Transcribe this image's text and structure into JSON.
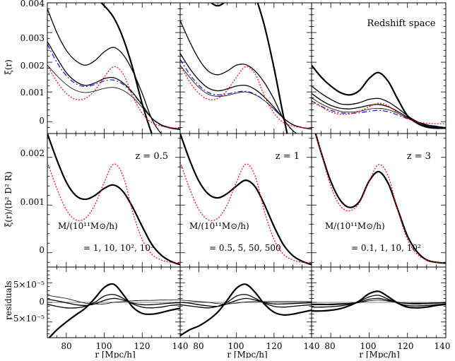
{
  "figure": {
    "x_label": "r [Mpc/h]",
    "x_ticks": [
      80,
      100,
      120,
      140
    ],
    "x_range": [
      70,
      140
    ],
    "row_labels": {
      "top": "ξ(r)",
      "middle": "ξ(r)/(b² D² R)",
      "bottom": "residuals"
    },
    "y_ticks": {
      "top": [
        "0.004",
        "0.003",
        "0.002",
        "0.001",
        "0"
      ],
      "middle": [
        "0.002",
        "0.001",
        "0"
      ],
      "bottom": [
        "5×10⁻⁵",
        "0",
        "−5×10⁻⁵"
      ]
    },
    "redshift_space_label": "Redshift space",
    "panels": [
      {
        "z_label": "z = 0.5",
        "mass_header": "M/(10¹¹M⊙/h)",
        "mass_values": "= 1, 10, 10², 10³"
      },
      {
        "z_label": "z = 1",
        "mass_header": "M/(10¹¹M⊙/h)",
        "mass_values": "= 0.5, 5, 50, 500"
      },
      {
        "z_label": "z = 3",
        "mass_header": "M/(10¹¹M⊙/h)",
        "mass_values": "= 0.1, 1, 10, 10²"
      }
    ],
    "colors": {
      "model": "#000000",
      "linear": "#ff0000",
      "dashed_blue": "#2222cc"
    }
  },
  "chart_data": {
    "type": "line",
    "x": [
      70,
      75,
      80,
      85,
      90,
      95,
      100,
      105,
      110,
      115,
      120,
      125,
      130,
      135,
      140
    ],
    "row_ranges": {
      "top": [
        -0.0004,
        0.004
      ],
      "middle": [
        -0.0003,
        0.0025
      ],
      "bottom": [
        -9e-05,
        9e-05
      ]
    },
    "panels": [
      {
        "z": 0.5,
        "top_series": [
          {
            "style": "thin",
            "values": [
              0.0019,
              0.00155,
              0.00125,
              0.00105,
              0.00098,
              0.00103,
              0.00112,
              0.00115,
              0.00105,
              0.00082,
              0.00048,
              0.00012,
              -0.0001,
              -0.0002,
              -0.00025
            ]
          },
          {
            "style": "dashed_blue",
            "values": [
              0.0026,
              0.002,
              0.00155,
              0.00128,
              0.00118,
              0.00125,
              0.00137,
              0.0014,
              0.00125,
              0.00095,
              0.00055,
              0.00013,
              -0.0001,
              -0.0002,
              -0.00025
            ]
          },
          {
            "style": "medium",
            "values": [
              0.0027,
              0.00215,
              0.00165,
              0.00135,
              0.00122,
              0.0013,
              0.00145,
              0.00148,
              0.0013,
              0.00098,
              0.00056,
              0.00012,
              -0.00012,
              -0.00022,
              -0.00027
            ]
          },
          {
            "style": "medium",
            "values": [
              0.0038,
              0.003,
              0.0024,
              0.00205,
              0.0019,
              0.00205,
              0.00235,
              0.0025,
              0.00225,
              0.0017,
              0.00095,
              0.0001,
              -0.0004,
              -0.0006,
              -0.0006
            ]
          },
          {
            "style": "thick",
            "values": [
              0.0075,
              0.0068,
              0.006,
              0.0052,
              0.0046,
              0.0042,
              0.0039,
              0.0035,
              0.0028,
              0.0018,
              0.0006,
              -0.0004,
              -0.0012,
              -0.0018,
              -0.0022
            ]
          },
          {
            "style": "linear",
            "values": [
              0.0019,
              0.00135,
              0.00095,
              0.00075,
              0.00078,
              0.00105,
              0.0015,
              0.00185,
              0.0016,
              0.00085,
              0.00028,
              -3e-05,
              -0.00015,
              -0.0002,
              -0.00022
            ]
          }
        ],
        "middle_series": [
          {
            "style": "thick",
            "values": [
              0.0025,
              0.00195,
              0.00148,
              0.0012,
              0.00112,
              0.0012,
              0.00135,
              0.00142,
              0.00128,
              0.00095,
              0.00055,
              0.00018,
              -5e-05,
              -0.00018,
              -0.00025
            ]
          },
          {
            "style": "linear",
            "values": [
              0.0019,
              0.00135,
              0.0009,
              0.00069,
              0.00072,
              0.001,
              0.00148,
              0.00186,
              0.0016,
              0.00085,
              0.00028,
              -3e-05,
              -0.00015,
              -0.0002,
              -0.00022
            ]
          }
        ],
        "bottom_series": [
          {
            "style": "thin",
            "values": [
              1.8e-05,
              1.4e-05,
              1e-05,
              4e-06,
              -2e-06,
              -4e-06,
              -4e-06,
              0.0,
              2e-06,
              4e-06,
              5e-06,
              5e-06,
              6e-06,
              6e-06,
              7e-06
            ]
          },
          {
            "style": "medium",
            "values": [
              8e-06,
              4e-06,
              -1e-06,
              -6e-06,
              -8e-06,
              -4e-06,
              5e-06,
              1e-05,
              6e-06,
              -2e-06,
              -6e-06,
              -6e-06,
              -4e-06,
              -2e-06,
              -1e-06
            ]
          },
          {
            "style": "medium",
            "values": [
              -5e-06,
              -1e-05,
              -1.4e-05,
              -1.4e-05,
              -1e-05,
              0.0,
              1.6e-05,
              2e-05,
              1e-05,
              -4e-06,
              -1.2e-05,
              -1.4e-05,
              -1.2e-05,
              -8e-06,
              -6e-06
            ]
          },
          {
            "style": "thick",
            "values": [
              -9.5e-05,
              -7e-05,
              -5e-05,
              -3.2e-05,
              -1.5e-05,
              1e-05,
              3.8e-05,
              4.6e-05,
              2e-05,
              -1.2e-05,
              -2.8e-05,
              -3e-05,
              -2.6e-05,
              -2e-05,
              -1.5e-05
            ]
          }
        ]
      },
      {
        "z": 1,
        "top_series": [
          {
            "style": "thin",
            "values": [
              0.0019,
              0.0015,
              0.00115,
              0.00092,
              0.00085,
              0.00088,
              0.00096,
              0.001,
              0.0009,
              0.0007,
              0.00042,
              0.00012,
              -0.0001,
              -0.0002,
              -0.00025
            ]
          },
          {
            "style": "dashed_blue",
            "values": [
              0.0021,
              0.0016,
              0.00122,
              0.00098,
              0.0009,
              0.00093,
              0.001,
              0.00102,
              0.00092,
              0.0007,
              0.00042,
              0.00012,
              -0.0001,
              -0.0002,
              -0.00025
            ]
          },
          {
            "style": "medium",
            "values": [
              0.0023,
              0.0018,
              0.0014,
              0.00113,
              0.00104,
              0.0011,
              0.0012,
              0.00122,
              0.00108,
              0.00082,
              0.00048,
              0.00012,
              -0.0001,
              -0.0002,
              -0.00025
            ]
          },
          {
            "style": "medium",
            "values": [
              0.0034,
              0.0027,
              0.0021,
              0.0017,
              0.00158,
              0.0017,
              0.0019,
              0.00192,
              0.0017,
              0.0013,
              0.00075,
              0.0001,
              -0.0003,
              -0.0005,
              -0.0006
            ]
          },
          {
            "style": "thick",
            "values": [
              0.0062,
              0.0054,
              0.0046,
              0.0041,
              0.0039,
              0.0041,
              0.0045,
              0.0046,
              0.0042,
              0.0032,
              0.0018,
              0.0002,
              -0.0012,
              -0.002,
              -0.0025
            ]
          },
          {
            "style": "linear",
            "values": [
              0.0019,
              0.00135,
              0.00095,
              0.00075,
              0.00078,
              0.00105,
              0.0015,
              0.00185,
              0.0016,
              0.00085,
              0.00028,
              -3e-05,
              -0.00015,
              -0.0002,
              -0.00022
            ]
          }
        ],
        "middle_series": [
          {
            "style": "thick",
            "values": [
              0.0025,
              0.00195,
              0.0015,
              0.00123,
              0.00115,
              0.00124,
              0.0014,
              0.00152,
              0.00138,
              0.001,
              0.00055,
              0.00017,
              -6e-05,
              -0.00018,
              -0.00025
            ]
          },
          {
            "style": "linear",
            "values": [
              0.0019,
              0.00135,
              0.0009,
              0.00069,
              0.00072,
              0.001,
              0.00148,
              0.00186,
              0.0016,
              0.00085,
              0.00028,
              -3e-05,
              -0.00015,
              -0.0002,
              -0.00022
            ]
          }
        ],
        "bottom_series": [
          {
            "style": "thin",
            "values": [
              6e-06,
              4e-06,
              2e-06,
              0.0,
              -3e-06,
              -4e-06,
              -2e-06,
              1e-06,
              2e-06,
              2e-06,
              2e-06,
              2e-06,
              2e-06,
              2e-06,
              2e-06
            ]
          },
          {
            "style": "medium",
            "values": [
              0.0,
              -2e-06,
              -6e-06,
              -9e-06,
              -1e-05,
              -4e-06,
              5e-06,
              1e-05,
              6e-06,
              0.0,
              -4e-06,
              -4e-06,
              -3e-06,
              -2e-06,
              -1e-06
            ]
          },
          {
            "style": "medium",
            "values": [
              -6e-06,
              -9e-06,
              -1.2e-05,
              -1.4e-05,
              -1e-05,
              0.0,
              1.6e-05,
              2e-05,
              1e-05,
              -2e-06,
              -1e-05,
              -1.2e-05,
              -1e-05,
              -8e-06,
              -6e-06
            ]
          },
          {
            "style": "thick",
            "values": [
              -8.5e-05,
              -7e-05,
              -6e-05,
              -4.5e-05,
              -2.5e-05,
              5e-06,
              3.6e-05,
              4.6e-05,
              2.5e-05,
              -5e-06,
              -2.5e-05,
              -3.2e-05,
              -3e-05,
              -2.5e-05,
              -2e-05
            ]
          }
        ]
      },
      {
        "z": 3,
        "top_series": [
          {
            "style": "thin",
            "values": [
              0.0008,
              0.0006,
              0.00045,
              0.00035,
              0.00032,
              0.00035,
              0.00042,
              0.00045,
              0.0004,
              0.00028,
              0.00012,
              0.0,
              -0.0001,
              -0.00015,
              -0.0002
            ]
          },
          {
            "style": "dashed_blue",
            "values": [
              0.0007,
              0.00052,
              0.00038,
              0.0003,
              0.00028,
              0.0003,
              0.00035,
              0.00038,
              0.00033,
              0.00022,
              0.0001,
              0.0,
              -0.0001,
              -0.00015,
              -0.0002
            ]
          },
          {
            "style": "medium",
            "values": [
              0.00095,
              0.00072,
              0.00055,
              0.00045,
              0.00043,
              0.00048,
              0.00055,
              0.00058,
              0.0005,
              0.00034,
              0.00015,
              0.0,
              -0.00011,
              -0.00017,
              -0.0002
            ]
          },
          {
            "style": "medium",
            "values": [
              0.0012,
              0.00095,
              0.00075,
              0.0006,
              0.00058,
              0.00064,
              0.00075,
              0.00078,
              0.00066,
              0.00045,
              0.0002,
              0.0,
              -0.00014,
              -0.0002,
              -0.00023
            ]
          },
          {
            "style": "thick",
            "values": [
              0.0019,
              0.0015,
              0.0012,
              0.00098,
              0.0009,
              0.00105,
              0.00145,
              0.00165,
              0.00135,
              0.00075,
              0.0002,
              -5e-05,
              -0.00018,
              -0.00022,
              -0.00022
            ]
          },
          {
            "style": "linear",
            "values": [
              0.00068,
              0.0005,
              0.00033,
              0.00025,
              0.00026,
              0.00035,
              0.0005,
              0.00062,
              0.00053,
              0.00029,
              0.0001,
              -1e-05,
              -5e-05,
              -7e-05,
              -7e-05
            ]
          }
        ],
        "middle_series": [
          {
            "style": "thick",
            "values": [
              0.0028,
              0.0021,
              0.0015,
              0.0011,
              0.00095,
              0.00108,
              0.0015,
              0.0017,
              0.00145,
              0.0009,
              0.00035,
              2e-05,
              -0.00015,
              -0.0002,
              -0.00022
            ]
          },
          {
            "style": "linear",
            "values": [
              0.0028,
              0.0021,
              0.0014,
              0.00098,
              0.00088,
              0.00105,
              0.0015,
              0.00185,
              0.0016,
              0.00088,
              0.00028,
              -3e-05,
              -0.00015,
              -0.0002,
              -0.00022
            ]
          }
        ],
        "bottom_series": [
          {
            "style": "thin",
            "values": [
              -4e-06,
              -4e-06,
              -4e-06,
              -3e-06,
              -2e-06,
              0.0,
              4e-06,
              6e-06,
              3e-06,
              0.0,
              -2e-06,
              -2e-06,
              -2e-06,
              -1e-06,
              0.0
            ]
          },
          {
            "style": "medium",
            "values": [
              -6e-06,
              -6e-06,
              -6e-06,
              -5e-06,
              -3e-06,
              0.0,
              8e-06,
              1e-05,
              5e-06,
              0.0,
              -3e-06,
              -4e-06,
              -3e-06,
              -2e-06,
              -1e-06
            ]
          },
          {
            "style": "medium",
            "values": [
              -1.2e-05,
              -1.2e-05,
              -1.1e-05,
              -9e-06,
              -5e-06,
              2e-06,
              1.4e-05,
              1.8e-05,
              8e-06,
              -2e-06,
              -8e-06,
              -9e-06,
              -8e-06,
              -6e-06,
              -4e-06
            ]
          },
          {
            "style": "thick",
            "values": [
              -2.2e-05,
              -2.2e-05,
              -2e-05,
              -1.6e-05,
              -8e-06,
              4e-06,
              2.2e-05,
              2.8e-05,
              1.4e-05,
              -2e-06,
              -1.2e-05,
              -1.4e-05,
              -1.2e-05,
              -8e-06,
              -5e-06
            ]
          }
        ]
      }
    ]
  }
}
